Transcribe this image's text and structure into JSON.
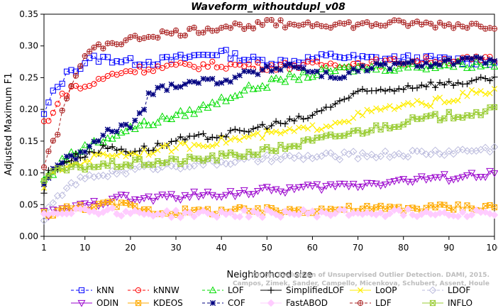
{
  "chart_data": {
    "type": "line",
    "title": "Waveform_withoutdupl_v08",
    "xlabel": "Neighborhood size",
    "ylabel": "Adjusted Maximum F1",
    "xlim": [
      1,
      100
    ],
    "ylim": [
      0,
      0.35
    ],
    "xticks": [
      "1",
      "10",
      "20",
      "30",
      "40",
      "50",
      "60",
      "70",
      "80",
      "90",
      "100"
    ],
    "yticks": [
      "0.00",
      "0.05",
      "0.10",
      "0.15",
      "0.20",
      "0.25",
      "0.30",
      "0.35"
    ],
    "legend_position": "bottom",
    "credit": [
      "Campos, Zimek, Sander, Campello, Micenkova, Schubert, Assent, Houle",
      "On the Evaluation of Unsupervised Outlier Detection. DAMI, 2015."
    ],
    "series": [
      {
        "name": "kNN",
        "color": "#0000ff",
        "marker": "square",
        "dash": "4,3",
        "anchors": [
          [
            1,
            0.19
          ],
          [
            2,
            0.21
          ],
          [
            3,
            0.225
          ],
          [
            5,
            0.245
          ],
          [
            7,
            0.265
          ],
          [
            9,
            0.265
          ],
          [
            10,
            0.275
          ],
          [
            12,
            0.28
          ],
          [
            15,
            0.28
          ],
          [
            20,
            0.275
          ],
          [
            25,
            0.275
          ],
          [
            30,
            0.28
          ],
          [
            35,
            0.285
          ],
          [
            40,
            0.29
          ],
          [
            45,
            0.28
          ],
          [
            50,
            0.275
          ],
          [
            55,
            0.275
          ],
          [
            60,
            0.28
          ],
          [
            65,
            0.285
          ],
          [
            70,
            0.28
          ],
          [
            80,
            0.28
          ],
          [
            90,
            0.278
          ],
          [
            100,
            0.275
          ]
        ]
      },
      {
        "name": "kNNW",
        "color": "#ff0000",
        "marker": "circle",
        "dash": "4,3",
        "anchors": [
          [
            1,
            0.18
          ],
          [
            2,
            0.18
          ],
          [
            3,
            0.2
          ],
          [
            5,
            0.22
          ],
          [
            7,
            0.235
          ],
          [
            10,
            0.235
          ],
          [
            13,
            0.245
          ],
          [
            16,
            0.255
          ],
          [
            20,
            0.262
          ],
          [
            25,
            0.265
          ],
          [
            30,
            0.268
          ],
          [
            40,
            0.27
          ],
          [
            50,
            0.268
          ],
          [
            60,
            0.27
          ],
          [
            70,
            0.272
          ],
          [
            80,
            0.275
          ],
          [
            90,
            0.278
          ],
          [
            100,
            0.278
          ]
        ]
      },
      {
        "name": "LOF",
        "color": "#00dd00",
        "marker": "triangle",
        "dash": "4,3",
        "anchors": [
          [
            1,
            0.09
          ],
          [
            3,
            0.1
          ],
          [
            5,
            0.12
          ],
          [
            10,
            0.14
          ],
          [
            15,
            0.155
          ],
          [
            20,
            0.17
          ],
          [
            25,
            0.18
          ],
          [
            30,
            0.19
          ],
          [
            35,
            0.2
          ],
          [
            40,
            0.215
          ],
          [
            45,
            0.23
          ],
          [
            50,
            0.24
          ],
          [
            55,
            0.25
          ],
          [
            60,
            0.255
          ],
          [
            65,
            0.262
          ],
          [
            70,
            0.265
          ],
          [
            80,
            0.267
          ],
          [
            90,
            0.27
          ],
          [
            100,
            0.272
          ]
        ]
      },
      {
        "name": "SimplifiedLOF",
        "color": "#000000",
        "marker": "plus",
        "dash": "",
        "anchors": [
          [
            1,
            0.07
          ],
          [
            2,
            0.1
          ],
          [
            4,
            0.11
          ],
          [
            6,
            0.12
          ],
          [
            10,
            0.13
          ],
          [
            15,
            0.14
          ],
          [
            20,
            0.135
          ],
          [
            25,
            0.14
          ],
          [
            30,
            0.15
          ],
          [
            35,
            0.155
          ],
          [
            40,
            0.16
          ],
          [
            45,
            0.165
          ],
          [
            50,
            0.175
          ],
          [
            55,
            0.18
          ],
          [
            60,
            0.19
          ],
          [
            65,
            0.21
          ],
          [
            70,
            0.225
          ],
          [
            75,
            0.23
          ],
          [
            80,
            0.235
          ],
          [
            85,
            0.24
          ],
          [
            90,
            0.24
          ],
          [
            95,
            0.245
          ],
          [
            100,
            0.245
          ]
        ]
      },
      {
        "name": "LoOP",
        "color": "#ffee00",
        "marker": "x",
        "dash": "",
        "anchors": [
          [
            1,
            0.08
          ],
          [
            3,
            0.1
          ],
          [
            6,
            0.11
          ],
          [
            10,
            0.12
          ],
          [
            15,
            0.13
          ],
          [
            20,
            0.13
          ],
          [
            25,
            0.135
          ],
          [
            30,
            0.14
          ],
          [
            35,
            0.145
          ],
          [
            40,
            0.15
          ],
          [
            45,
            0.155
          ],
          [
            50,
            0.16
          ],
          [
            55,
            0.165
          ],
          [
            60,
            0.17
          ],
          [
            65,
            0.18
          ],
          [
            70,
            0.19
          ],
          [
            75,
            0.2
          ],
          [
            80,
            0.205
          ],
          [
            85,
            0.21
          ],
          [
            90,
            0.215
          ],
          [
            95,
            0.225
          ],
          [
            100,
            0.228
          ]
        ]
      },
      {
        "name": "LDOF",
        "color": "#bbbbdd",
        "marker": "diamond",
        "dash": "4,3",
        "anchors": [
          [
            1,
            0.03
          ],
          [
            3,
            0.05
          ],
          [
            5,
            0.07
          ],
          [
            8,
            0.085
          ],
          [
            12,
            0.095
          ],
          [
            16,
            0.1
          ],
          [
            20,
            0.105
          ],
          [
            25,
            0.11
          ],
          [
            30,
            0.112
          ],
          [
            40,
            0.117
          ],
          [
            50,
            0.122
          ],
          [
            60,
            0.125
          ],
          [
            70,
            0.128
          ],
          [
            80,
            0.13
          ],
          [
            90,
            0.133
          ],
          [
            100,
            0.138
          ]
        ]
      },
      {
        "name": "ODIN",
        "color": "#9900cc",
        "marker": "tri-down",
        "dash": "",
        "anchors": [
          [
            1,
            0.035
          ],
          [
            5,
            0.04
          ],
          [
            10,
            0.048
          ],
          [
            14,
            0.055
          ],
          [
            17,
            0.065
          ],
          [
            20,
            0.057
          ],
          [
            25,
            0.06
          ],
          [
            30,
            0.063
          ],
          [
            40,
            0.067
          ],
          [
            50,
            0.072
          ],
          [
            60,
            0.077
          ],
          [
            70,
            0.082
          ],
          [
            80,
            0.088
          ],
          [
            90,
            0.093
          ],
          [
            100,
            0.098
          ]
        ]
      },
      {
        "name": "KDEOS",
        "color": "#ffaa00",
        "marker": "square-x",
        "dash": "",
        "anchors": [
          [
            1,
            0.035
          ],
          [
            3,
            0.038
          ],
          [
            5,
            0.042
          ],
          [
            8,
            0.045
          ],
          [
            12,
            0.048
          ],
          [
            16,
            0.05
          ],
          [
            20,
            0.048
          ],
          [
            23,
            0.042
          ],
          [
            26,
            0.038
          ],
          [
            30,
            0.038
          ],
          [
            40,
            0.04
          ],
          [
            50,
            0.04
          ],
          [
            60,
            0.042
          ],
          [
            70,
            0.043
          ],
          [
            80,
            0.044
          ],
          [
            90,
            0.046
          ],
          [
            100,
            0.046
          ]
        ]
      },
      {
        "name": "COF",
        "color": "#000080",
        "marker": "asterisk",
        "dash": "4,3",
        "anchors": [
          [
            1,
            0.08
          ],
          [
            3,
            0.11
          ],
          [
            6,
            0.12
          ],
          [
            9,
            0.13
          ],
          [
            12,
            0.145
          ],
          [
            15,
            0.165
          ],
          [
            18,
            0.17
          ],
          [
            21,
            0.18
          ],
          [
            23,
            0.2
          ],
          [
            24,
            0.225
          ],
          [
            26,
            0.23
          ],
          [
            30,
            0.24
          ],
          [
            35,
            0.245
          ],
          [
            40,
            0.245
          ],
          [
            45,
            0.255
          ],
          [
            50,
            0.262
          ],
          [
            55,
            0.27
          ],
          [
            60,
            0.26
          ],
          [
            65,
            0.25
          ],
          [
            70,
            0.262
          ],
          [
            75,
            0.268
          ],
          [
            80,
            0.27
          ],
          [
            90,
            0.275
          ],
          [
            100,
            0.278
          ]
        ]
      },
      {
        "name": "FastABOD",
        "color": "#ffccff",
        "marker": "diamond-filled",
        "dash": "",
        "anchors": [
          [
            1,
            0.035
          ],
          [
            3,
            0.038
          ],
          [
            6,
            0.04
          ],
          [
            10,
            0.042
          ],
          [
            15,
            0.04
          ],
          [
            20,
            0.037
          ],
          [
            25,
            0.036
          ],
          [
            30,
            0.035
          ],
          [
            40,
            0.035
          ],
          [
            50,
            0.036
          ],
          [
            60,
            0.036
          ],
          [
            70,
            0.037
          ],
          [
            80,
            0.037
          ],
          [
            90,
            0.037
          ],
          [
            100,
            0.037
          ]
        ]
      },
      {
        "name": "LDF",
        "color": "#aa2222",
        "marker": "circle-plus",
        "dash": "4,3",
        "anchors": [
          [
            1,
            0.11
          ],
          [
            2,
            0.135
          ],
          [
            4,
            0.165
          ],
          [
            6,
            0.22
          ],
          [
            8,
            0.255
          ],
          [
            10,
            0.28
          ],
          [
            13,
            0.3
          ],
          [
            16,
            0.305
          ],
          [
            20,
            0.31
          ],
          [
            25,
            0.318
          ],
          [
            30,
            0.32
          ],
          [
            35,
            0.325
          ],
          [
            40,
            0.33
          ],
          [
            45,
            0.332
          ],
          [
            50,
            0.335
          ],
          [
            60,
            0.335
          ],
          [
            70,
            0.333
          ],
          [
            80,
            0.335
          ],
          [
            90,
            0.333
          ],
          [
            100,
            0.332
          ]
        ]
      },
      {
        "name": "INFLO",
        "color": "#99cc33",
        "marker": "hourglass",
        "dash": "",
        "anchors": [
          [
            1,
            0.09
          ],
          [
            3,
            0.1
          ],
          [
            6,
            0.105
          ],
          [
            10,
            0.11
          ],
          [
            15,
            0.112
          ],
          [
            20,
            0.115
          ],
          [
            30,
            0.118
          ],
          [
            40,
            0.125
          ],
          [
            50,
            0.135
          ],
          [
            60,
            0.15
          ],
          [
            70,
            0.165
          ],
          [
            80,
            0.18
          ],
          [
            90,
            0.19
          ],
          [
            100,
            0.198
          ]
        ]
      }
    ]
  }
}
